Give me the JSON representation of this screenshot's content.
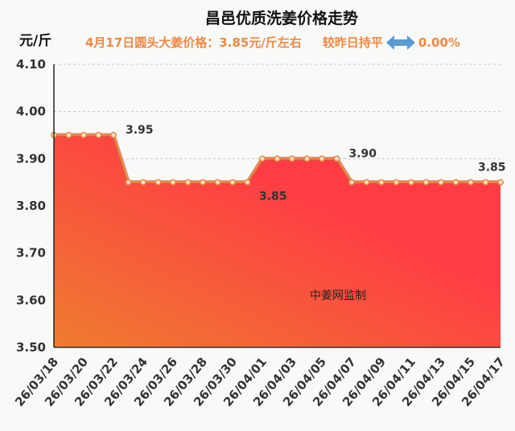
{
  "chart_data": {
    "type": "area",
    "title": "昌邑优质洗姜价格走势",
    "ylabel": "元/斤",
    "subtitle": "4月17日圆头大姜价格：3.85元/斤左右",
    "change_text": "较昨日持平",
    "change_value": "0.00%",
    "watermark": "中姜网监制",
    "ylim": [
      3.5,
      4.1
    ],
    "yticks": [
      "3.50",
      "3.60",
      "3.70",
      "3.80",
      "3.90",
      "4.00",
      "4.10"
    ],
    "x": [
      "26/03/18",
      "26/03/19",
      "26/03/20",
      "26/03/21",
      "26/03/22",
      "26/03/23",
      "26/03/24",
      "26/03/25",
      "26/03/26",
      "26/03/27",
      "26/03/28",
      "26/03/29",
      "26/03/30",
      "26/03/31",
      "26/04/01",
      "26/04/02",
      "26/04/03",
      "26/04/04",
      "26/04/05",
      "26/04/06",
      "26/04/07",
      "26/04/08",
      "26/04/09",
      "26/04/10",
      "26/04/11",
      "26/04/12",
      "26/04/13",
      "26/04/14",
      "26/04/15",
      "26/04/16",
      "26/04/17"
    ],
    "xtick_labels": [
      "26/03/18",
      "26/03/20",
      "26/03/22",
      "26/03/24",
      "26/03/26",
      "26/03/28",
      "26/03/30",
      "26/04/01",
      "26/04/03",
      "26/04/05",
      "26/04/07",
      "26/04/09",
      "26/04/11",
      "26/04/13",
      "26/04/15",
      "26/04/17"
    ],
    "values": [
      3.95,
      3.95,
      3.95,
      3.95,
      3.95,
      3.85,
      3.85,
      3.85,
      3.85,
      3.85,
      3.85,
      3.85,
      3.85,
      3.85,
      3.9,
      3.9,
      3.9,
      3.9,
      3.9,
      3.9,
      3.85,
      3.85,
      3.85,
      3.85,
      3.85,
      3.85,
      3.85,
      3.85,
      3.85,
      3.85,
      3.85
    ],
    "data_labels": [
      {
        "index": 4,
        "text": "3.95"
      },
      {
        "index": 13,
        "text": "3.85"
      },
      {
        "index": 19,
        "text": "3.90"
      },
      {
        "index": 30,
        "text": "3.85"
      }
    ],
    "colors": {
      "line": "#e8843a",
      "fill_top": "#ff3c44",
      "fill_bottom": "#ee7c30",
      "accent": "#ee8844",
      "arrow": "#5b9bd5"
    }
  }
}
